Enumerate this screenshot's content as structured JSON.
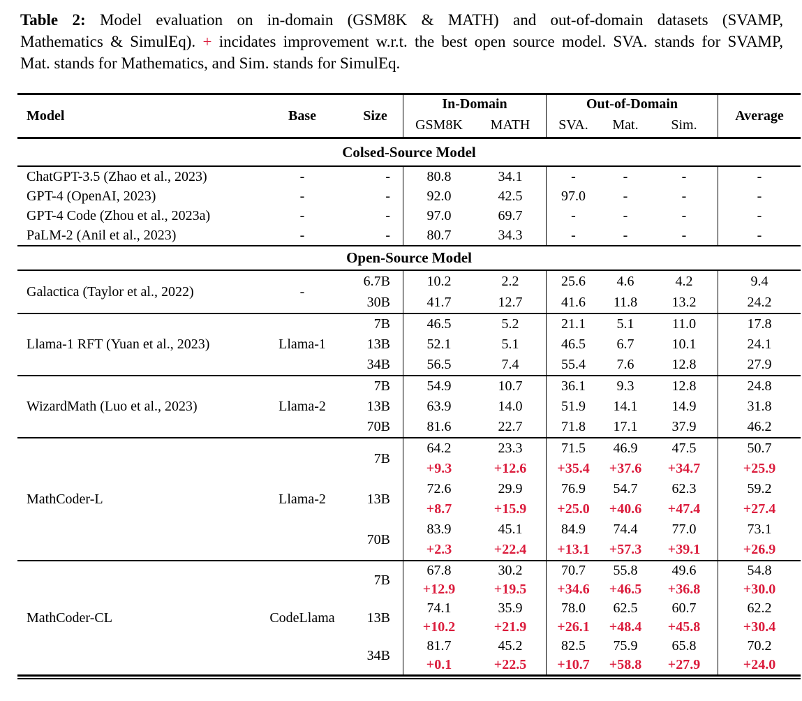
{
  "caption": {
    "label": "Table 2:",
    "line1_text": " Model evaluation on in-domain (GSM8K & MATH) and out-of-domain datasets (SVAMP,",
    "line2_before": "Mathematics & SimulEq). ",
    "plus_symbol": "+",
    "line2_after": " incidates improvement w.r.t. the best open source model. SVA. stands for SVAMP,",
    "line3_text": "Mat. stands for Mathematics, and Sim. stands for SimulEq."
  },
  "colors": {
    "improvement_red": "#DB1C3C",
    "text": "#000000",
    "background": "#FFFFFF"
  },
  "table": {
    "header": {
      "model": "Model",
      "base": "Base",
      "size": "Size",
      "in_domain": "In-Domain",
      "out_of_domain": "Out-of-Domain",
      "average": "Average",
      "sub": [
        "GSM8K",
        "MATH",
        "SVA.",
        "Mat.",
        "Sim."
      ]
    },
    "sections": [
      {
        "title": "Colsed-Source Model",
        "blocks": [
          {
            "type": "list",
            "rows": [
              {
                "model": "ChatGPT-3.5 (Zhao et al., 2023)",
                "base": "-",
                "size": "-",
                "values": [
                  "80.8",
                  "34.1",
                  "-",
                  "-",
                  "-",
                  "-"
                ]
              },
              {
                "model": "GPT-4 (OpenAI, 2023)",
                "base": "-",
                "size": "-",
                "values": [
                  "92.0",
                  "42.5",
                  "97.0",
                  "-",
                  "-",
                  "-"
                ]
              },
              {
                "model": "GPT-4 Code (Zhou et al., 2023a)",
                "base": "-",
                "size": "-",
                "values": [
                  "97.0",
                  "69.7",
                  "-",
                  "-",
                  "-",
                  "-"
                ]
              },
              {
                "model": "PaLM-2 (Anil et al., 2023)",
                "base": "-",
                "size": "-",
                "values": [
                  "80.7",
                  "34.3",
                  "-",
                  "-",
                  "-",
                  "-"
                ]
              }
            ]
          }
        ]
      },
      {
        "title": "Open-Source Model",
        "blocks": [
          {
            "type": "group",
            "model": "Galactica (Taylor et al., 2022)",
            "base": "-",
            "rows": [
              {
                "size": "6.7B",
                "values": [
                  "10.2",
                  "2.2",
                  "25.6",
                  "4.6",
                  "4.2",
                  "9.4"
                ]
              },
              {
                "size": "30B",
                "values": [
                  "41.7",
                  "12.7",
                  "41.6",
                  "11.8",
                  "13.2",
                  "24.2"
                ]
              }
            ]
          },
          {
            "type": "group",
            "model": "Llama-1 RFT (Yuan et al., 2023)",
            "base": "Llama-1",
            "rows": [
              {
                "size": "7B",
                "values": [
                  "46.5",
                  "5.2",
                  "21.1",
                  "5.1",
                  "11.0",
                  "17.8"
                ]
              },
              {
                "size": "13B",
                "values": [
                  "52.1",
                  "5.1",
                  "46.5",
                  "6.7",
                  "10.1",
                  "24.1"
                ]
              },
              {
                "size": "34B",
                "values": [
                  "56.5",
                  "7.4",
                  "55.4",
                  "7.6",
                  "12.8",
                  "27.9"
                ]
              }
            ]
          },
          {
            "type": "group",
            "model": "WizardMath (Luo et al., 2023)",
            "base": "Llama-2",
            "rows": [
              {
                "size": "7B",
                "values": [
                  "54.9",
                  "10.7",
                  "36.1",
                  "9.3",
                  "12.8",
                  "24.8"
                ]
              },
              {
                "size": "13B",
                "values": [
                  "63.9",
                  "14.0",
                  "51.9",
                  "14.1",
                  "14.9",
                  "31.8"
                ]
              },
              {
                "size": "70B",
                "values": [
                  "81.6",
                  "22.7",
                  "71.8",
                  "17.1",
                  "37.9",
                  "46.2"
                ]
              }
            ]
          },
          {
            "type": "group",
            "model": "MathCoder-L",
            "base": "Llama-2",
            "rows": [
              {
                "size": "7B",
                "values": [
                  "64.2",
                  "23.3",
                  "71.5",
                  "46.9",
                  "47.5",
                  "50.7"
                ],
                "improvements": [
                  "+9.3",
                  "+12.6",
                  "+35.4",
                  "+37.6",
                  "+34.7",
                  "+25.9"
                ]
              },
              {
                "size": "13B",
                "values": [
                  "72.6",
                  "29.9",
                  "76.9",
                  "54.7",
                  "62.3",
                  "59.2"
                ],
                "improvements": [
                  "+8.7",
                  "+15.9",
                  "+25.0",
                  "+40.6",
                  "+47.4",
                  "+27.4"
                ]
              },
              {
                "size": "70B",
                "values": [
                  "83.9",
                  "45.1",
                  "84.9",
                  "74.4",
                  "77.0",
                  "73.1"
                ],
                "improvements": [
                  "+2.3",
                  "+22.4",
                  "+13.1",
                  "+57.3",
                  "+39.1",
                  "+26.9"
                ]
              }
            ]
          },
          {
            "type": "group",
            "model": "MathCoder-CL",
            "base": "CodeLlama",
            "rows": [
              {
                "size": "7B",
                "values": [
                  "67.8",
                  "30.2",
                  "70.7",
                  "55.8",
                  "49.6",
                  "54.8"
                ],
                "improvements": [
                  "+12.9",
                  "+19.5",
                  "+34.6",
                  "+46.5",
                  "+36.8",
                  "+30.0"
                ]
              },
              {
                "size": "13B",
                "values": [
                  "74.1",
                  "35.9",
                  "78.0",
                  "62.5",
                  "60.7",
                  "62.2"
                ],
                "improvements": [
                  "+10.2",
                  "+21.9",
                  "+26.1",
                  "+48.4",
                  "+45.8",
                  "+30.4"
                ]
              },
              {
                "size": "34B",
                "values": [
                  "81.7",
                  "45.2",
                  "82.5",
                  "75.9",
                  "65.8",
                  "70.2"
                ],
                "improvements": [
                  "+0.1",
                  "+22.5",
                  "+10.7",
                  "+58.8",
                  "+27.9",
                  "+24.0"
                ]
              }
            ]
          }
        ]
      }
    ]
  }
}
